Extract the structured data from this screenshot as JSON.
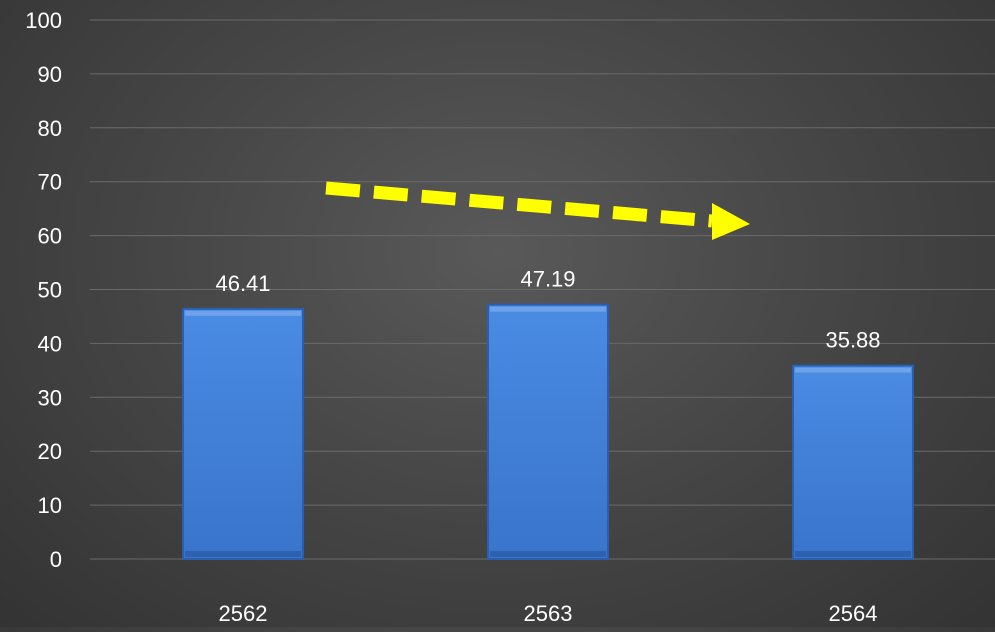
{
  "chart_data": {
    "type": "bar",
    "categories": [
      "2562",
      "2563",
      "2564"
    ],
    "values": [
      46.41,
      47.19,
      35.88
    ],
    "data_labels": [
      "46.41",
      "47.19",
      "35.88"
    ],
    "ylim": [
      0,
      100
    ],
    "yticks": [
      "0",
      "10",
      "20",
      "30",
      "40",
      "50",
      "60",
      "70",
      "80",
      "90",
      "100"
    ],
    "grid": true,
    "annotation": "yellow dashed arrow pointing right and slightly downward (decreasing trend)"
  },
  "colors": {
    "bar": "#3F7FD9",
    "bar_dark": "#2A5FAF",
    "gridline": "#6A6A6A",
    "text": "#FFFFFF",
    "arrow": "#FFFF00"
  }
}
